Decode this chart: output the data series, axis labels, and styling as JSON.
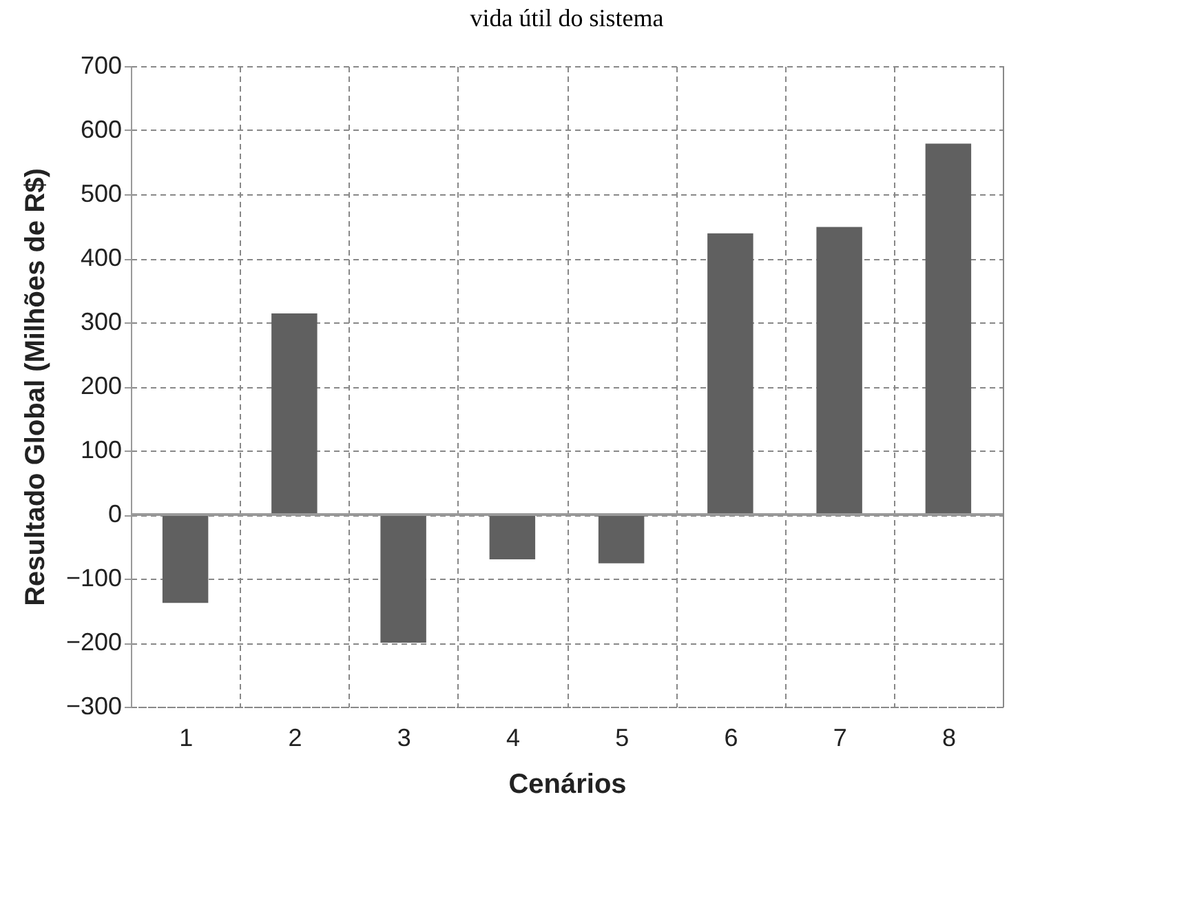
{
  "chart_data": {
    "type": "bar",
    "title": "vida útil do sistema",
    "categories": [
      "1",
      "2",
      "3",
      "4",
      "5",
      "6",
      "7",
      "8"
    ],
    "values": [
      -138,
      314,
      -200,
      -70,
      -76,
      439,
      449,
      579
    ],
    "color": "#606060",
    "xlabel": "Cenários",
    "ylabel": "Resultado Global (Milhões de R$)",
    "ylim": [
      -300,
      700
    ],
    "yticks": [
      -300,
      -200,
      -100,
      0,
      100,
      200,
      300,
      400,
      500,
      600,
      700
    ],
    "grid": true
  }
}
